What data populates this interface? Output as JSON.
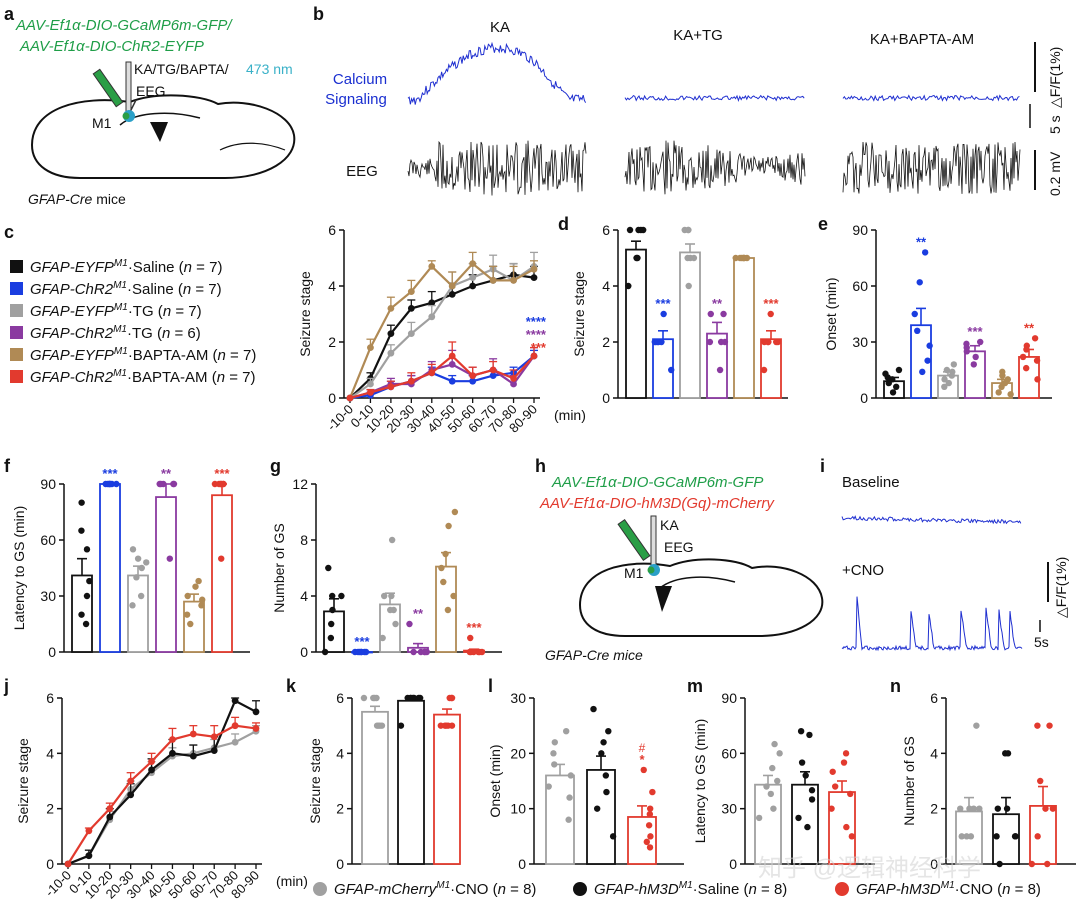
{
  "colors": {
    "black": "#111111",
    "blue": "#1a3de0",
    "gray": "#a0a0a0",
    "purple": "#8a3aa0",
    "tan": "#b08a55",
    "red": "#e23a2e",
    "green": "#1f9e48",
    "cyan": "#3ab1c8",
    "trace_blue": "#1f2fd0",
    "ca_text": "#1a2fd0"
  },
  "labels": {
    "a": "a",
    "b": "b",
    "c": "c",
    "d": "d",
    "e": "e",
    "f": "f",
    "g": "g",
    "h": "h",
    "i": "i",
    "j": "j",
    "k": "k",
    "l": "l",
    "m": "m",
    "n": "n"
  },
  "panel_a": {
    "virus1": "AAV-Ef1α-DIO-GCaMP6m-GFP/",
    "virus2": "AAV-Ef1α-DIO-ChR2-EYFP",
    "drugs": "KA/TG/BAPTA/",
    "light": "473 nm",
    "eeg": "EEG",
    "region": "M1",
    "mice": "GFAP-Cre",
    "mice_suffix": " mice"
  },
  "panel_b": {
    "conditions": [
      "KA",
      "KA+TG",
      "KA+BAPTA-AM"
    ],
    "row1_label_1": "Calcium",
    "row1_label_2": "Signaling",
    "row2_label": "EEG",
    "scale_df": "△F/F(1%)",
    "scale_time": "5 s",
    "scale_mv": "0.2 mV"
  },
  "panel_c_legend": [
    {
      "name": "GFAP-EYFP",
      "sup": "M1",
      "cond": "·Saline (",
      "n": "n",
      "eq": " = 7)",
      "color": "black"
    },
    {
      "name": "GFAP-ChR2",
      "sup": "M1",
      "cond": "·Saline (",
      "n": "n",
      "eq": " = 7)",
      "color": "blue"
    },
    {
      "name": "GFAP-EYFP",
      "sup": "M1",
      "cond": "·TG (",
      "n": "n",
      "eq": " = 7)",
      "color": "gray"
    },
    {
      "name": "GFAP-ChR2",
      "sup": "M1",
      "cond": "·TG (",
      "n": "n",
      "eq": " = 6)",
      "color": "purple"
    },
    {
      "name": "GFAP-EYFP",
      "sup": "M1",
      "cond": "·BAPTA-AM (",
      "n": "n",
      "eq": " = 7)",
      "color": "tan"
    },
    {
      "name": "GFAP-ChR2",
      "sup": "M1",
      "cond": "·BAPTA-AM (",
      "n": "n",
      "eq": " = 7)",
      "color": "red"
    }
  ],
  "panel_h": {
    "virus1": "AAV-Ef1α-DIO-GCaMP6m-GFP",
    "virus2": "AAV-Ef1α-DIO-hM3D(Gq)-mCherry",
    "ka": "KA",
    "eeg": "EEG",
    "region": "M1",
    "mice": "GFAP-Cre mice"
  },
  "panel_i": {
    "baseline": "Baseline",
    "cno": "+CNO",
    "scale_df": "△F/F(1%)",
    "scale_time": "5s"
  },
  "bottom_legend": [
    {
      "name": "GFAP-mCherry",
      "sup": "M1",
      "cond": "·CNO (",
      "n": "n",
      "eq": " = 8)",
      "color": "gray"
    },
    {
      "name": "GFAP-hM3D",
      "sup": "M1",
      "cond": "·Saline (",
      "n": "n",
      "eq": " = 8)",
      "color": "black"
    },
    {
      "name": "GFAP-hM3D",
      "sup": "M1",
      "cond": "·CNO (",
      "n": "n",
      "eq": " = 8)",
      "color": "red"
    }
  ],
  "watermark": "知乎 @逻辑神经科学",
  "chart_data": [
    {
      "id": "c",
      "type": "line",
      "ylabel": "Seizure stage",
      "xlabel": "(min)",
      "categories": [
        "-10-0",
        "0-10",
        "10-20",
        "20-30",
        "30-40",
        "40-50",
        "50-60",
        "60-70",
        "70-80",
        "80-90"
      ],
      "ylim": [
        0,
        6
      ],
      "yticks": [
        0,
        2,
        4,
        6
      ],
      "series": [
        {
          "name": "GFAP-EYFP Saline",
          "color": "black",
          "values": [
            0,
            0.7,
            2.3,
            3.2,
            3.4,
            3.7,
            4.0,
            4.2,
            4.4,
            4.3
          ],
          "err": [
            0,
            0.2,
            0.3,
            0.3,
            0.4,
            0.4,
            0.4,
            0.5,
            0.4,
            0.4
          ]
        },
        {
          "name": "GFAP-ChR2 Saline",
          "color": "blue",
          "values": [
            0,
            0.1,
            0.4,
            0.6,
            0.9,
            0.6,
            0.6,
            0.8,
            0.9,
            1.5
          ],
          "err": [
            0,
            0.1,
            0.2,
            0.2,
            0.2,
            0.2,
            0.2,
            0.2,
            0.2,
            0.2
          ]
        },
        {
          "name": "GFAP-EYFP TG",
          "color": "gray",
          "values": [
            0,
            0.5,
            1.6,
            2.3,
            2.9,
            4.0,
            4.3,
            4.6,
            4.2,
            4.7
          ],
          "err": [
            0,
            0.2,
            0.3,
            0.4,
            0.4,
            0.5,
            0.5,
            0.5,
            0.6,
            0.5
          ]
        },
        {
          "name": "GFAP-ChR2 TG",
          "color": "purple",
          "values": [
            0,
            0.2,
            0.5,
            0.5,
            1.0,
            1.2,
            0.8,
            1.0,
            0.5,
            1.5
          ],
          "err": [
            0,
            0.1,
            0.2,
            0.3,
            0.3,
            0.5,
            0.3,
            0.4,
            0.3,
            0.3
          ]
        },
        {
          "name": "GFAP-EYFP BAPTA-AM",
          "color": "tan",
          "values": [
            0,
            1.8,
            3.2,
            3.8,
            4.7,
            4.0,
            4.8,
            4.2,
            4.2,
            4.6
          ],
          "err": [
            0,
            0.3,
            0.4,
            0.4,
            0.2,
            0.5,
            0.4,
            0.5,
            0.5,
            0.3
          ]
        },
        {
          "name": "GFAP-ChR2 BAPTA-AM",
          "color": "red",
          "values": [
            0,
            0.2,
            0.4,
            0.6,
            0.9,
            1.5,
            0.8,
            1.0,
            0.7,
            1.5
          ],
          "err": [
            0,
            0.1,
            0.2,
            0.3,
            0.3,
            0.5,
            0.3,
            0.3,
            0.3,
            0.3
          ]
        }
      ],
      "stars": [
        {
          "text": "****",
          "color": "blue"
        },
        {
          "text": "****",
          "color": "purple"
        },
        {
          "text": "***",
          "color": "red"
        }
      ]
    },
    {
      "id": "d",
      "type": "bar",
      "ylabel": "Seizure stage",
      "ylim": [
        0,
        6
      ],
      "yticks": [
        0,
        2,
        4,
        6
      ],
      "bars": [
        {
          "color": "black",
          "mean": 5.3,
          "sem": 0.3,
          "points": [
            6,
            6,
            6,
            6,
            5,
            5,
            4
          ],
          "star": ""
        },
        {
          "color": "blue",
          "mean": 2.1,
          "sem": 0.3,
          "points": [
            3,
            2,
            2,
            2,
            2,
            2,
            1
          ],
          "star": "***"
        },
        {
          "color": "gray",
          "mean": 5.2,
          "sem": 0.3,
          "points": [
            6,
            6,
            6,
            5,
            5,
            5,
            4
          ],
          "star": ""
        },
        {
          "color": "purple",
          "mean": 2.3,
          "sem": 0.4,
          "points": [
            3,
            3,
            2,
            2,
            2,
            1
          ],
          "star": "**"
        },
        {
          "color": "tan",
          "mean": 5.0,
          "sem": 0.0,
          "points": [
            5,
            5,
            5,
            5,
            5,
            5,
            5
          ],
          "star": ""
        },
        {
          "color": "red",
          "mean": 2.1,
          "sem": 0.3,
          "points": [
            3,
            2,
            2,
            2,
            2,
            2,
            1
          ],
          "star": "***"
        }
      ]
    },
    {
      "id": "e",
      "type": "bar",
      "ylabel": "Onset (min)",
      "ylim": [
        0,
        90
      ],
      "yticks": [
        0,
        30,
        60,
        90
      ],
      "bars": [
        {
          "color": "black",
          "mean": 9,
          "sem": 2,
          "points": [
            3,
            6,
            8,
            10,
            11,
            13,
            15
          ],
          "star": ""
        },
        {
          "color": "blue",
          "mean": 39,
          "sem": 9,
          "points": [
            14,
            20,
            28,
            36,
            45,
            62,
            78
          ],
          "star": "**"
        },
        {
          "color": "gray",
          "mean": 12,
          "sem": 2,
          "points": [
            6,
            8,
            10,
            12,
            14,
            15,
            18
          ],
          "star": ""
        },
        {
          "color": "purple",
          "mean": 25,
          "sem": 3,
          "points": [
            18,
            22,
            25,
            27,
            29,
            30
          ],
          "star": "***"
        },
        {
          "color": "tan",
          "mean": 8,
          "sem": 2,
          "points": [
            2,
            3,
            6,
            8,
            10,
            12,
            14
          ],
          "star": ""
        },
        {
          "color": "red",
          "mean": 22,
          "sem": 4,
          "points": [
            10,
            16,
            20,
            22,
            26,
            28,
            32
          ],
          "star": "**"
        }
      ]
    },
    {
      "id": "f",
      "type": "bar",
      "ylabel": "Latency to GS (min)",
      "ylim": [
        0,
        90
      ],
      "yticks": [
        0,
        30,
        60,
        90
      ],
      "bars": [
        {
          "color": "black",
          "mean": 41,
          "sem": 9,
          "points": [
            15,
            20,
            30,
            38,
            55,
            65,
            80
          ],
          "star": ""
        },
        {
          "color": "blue",
          "mean": 90,
          "sem": 0,
          "points": [
            90,
            90,
            90,
            90,
            90,
            90,
            90
          ],
          "star": "***"
        },
        {
          "color": "gray",
          "mean": 41,
          "sem": 5,
          "points": [
            25,
            30,
            40,
            45,
            48,
            50,
            55
          ],
          "star": ""
        },
        {
          "color": "purple",
          "mean": 83,
          "sem": 7,
          "points": [
            50,
            90,
            90,
            90,
            90,
            90
          ],
          "star": "**"
        },
        {
          "color": "tan",
          "mean": 27,
          "sem": 4,
          "points": [
            15,
            20,
            25,
            28,
            30,
            35,
            38
          ],
          "star": ""
        },
        {
          "color": "red",
          "mean": 84,
          "sem": 6,
          "points": [
            50,
            90,
            90,
            90,
            90,
            90,
            90
          ],
          "star": "***"
        }
      ]
    },
    {
      "id": "g",
      "type": "bar",
      "ylabel": "Number of GS",
      "ylim": [
        0,
        12
      ],
      "yticks": [
        0,
        4,
        8,
        12
      ],
      "bars": [
        {
          "color": "black",
          "mean": 2.9,
          "sem": 0.9,
          "points": [
            0,
            1,
            2,
            3,
            4,
            4,
            6
          ],
          "star": ""
        },
        {
          "color": "blue",
          "mean": 0,
          "sem": 0,
          "points": [
            0,
            0,
            0,
            0,
            0,
            0,
            0
          ],
          "star": "***"
        },
        {
          "color": "gray",
          "mean": 3.4,
          "sem": 0.8,
          "points": [
            1,
            2,
            3,
            3,
            4,
            4,
            8
          ],
          "star": ""
        },
        {
          "color": "purple",
          "mean": 0.3,
          "sem": 0.3,
          "points": [
            0,
            0,
            0,
            0,
            0,
            2
          ],
          "star": "**"
        },
        {
          "color": "tan",
          "mean": 6.1,
          "sem": 1.0,
          "points": [
            3,
            4,
            5,
            6,
            7,
            9,
            10
          ],
          "star": ""
        },
        {
          "color": "red",
          "mean": 0.1,
          "sem": 0.1,
          "points": [
            0,
            0,
            0,
            0,
            0,
            0,
            1
          ],
          "star": "***"
        }
      ]
    },
    {
      "id": "j",
      "type": "line",
      "ylabel": "Seizure stage",
      "xlabel": "(min)",
      "categories": [
        "-10-0",
        "0-10",
        "10-20",
        "20-30",
        "30-40",
        "40-50",
        "50-60",
        "60-70",
        "70-80",
        "80-90"
      ],
      "ylim": [
        0,
        6
      ],
      "yticks": [
        0,
        2,
        4,
        6
      ],
      "series": [
        {
          "name": "GFAP-mCherry CNO",
          "color": "gray",
          "values": [
            0,
            0.3,
            1.6,
            2.7,
            3.3,
            3.9,
            4.0,
            4.2,
            4.4,
            4.8
          ],
          "err": [
            0,
            0.2,
            0.3,
            0.3,
            0.4,
            0.3,
            0.3,
            0.3,
            0.3,
            0.2
          ]
        },
        {
          "name": "GFAP-hM3D Saline",
          "color": "black",
          "values": [
            0,
            0.3,
            1.7,
            2.5,
            3.4,
            4.0,
            3.9,
            4.1,
            5.9,
            5.5
          ],
          "err": [
            0,
            0.2,
            0.3,
            0.4,
            0.4,
            0.5,
            0.4,
            0.5,
            0.1,
            0.4
          ]
        },
        {
          "name": "GFAP-hM3D CNO",
          "color": "red",
          "values": [
            0,
            1.2,
            2.0,
            3.0,
            3.7,
            4.5,
            4.7,
            4.6,
            5.0,
            4.9
          ],
          "err": [
            0,
            0.1,
            0.2,
            0.3,
            0.3,
            0.4,
            0.3,
            0.4,
            0.3,
            0.2
          ]
        }
      ]
    },
    {
      "id": "k",
      "type": "bar",
      "ylabel": "Seizure stage",
      "ylim": [
        0,
        6
      ],
      "yticks": [
        0,
        2,
        4,
        6
      ],
      "bars": [
        {
          "color": "gray",
          "mean": 5.5,
          "sem": 0.2,
          "points": [
            6,
            6,
            6,
            6,
            5,
            5,
            5,
            5
          ],
          "star": ""
        },
        {
          "color": "black",
          "mean": 5.9,
          "sem": 0.1,
          "points": [
            6,
            6,
            6,
            6,
            6,
            6,
            6,
            5
          ],
          "star": ""
        },
        {
          "color": "red",
          "mean": 5.4,
          "sem": 0.2,
          "points": [
            6,
            6,
            6,
            5,
            5,
            5,
            5,
            5
          ],
          "star": ""
        }
      ]
    },
    {
      "id": "l",
      "type": "bar",
      "ylabel": "Onset (min)",
      "ylim": [
        0,
        30
      ],
      "yticks": [
        0,
        10,
        20,
        30
      ],
      "bars": [
        {
          "color": "gray",
          "mean": 16,
          "sem": 2,
          "points": [
            8,
            12,
            14,
            16,
            18,
            20,
            22,
            24
          ],
          "star": ""
        },
        {
          "color": "black",
          "mean": 17,
          "sem": 2.5,
          "points": [
            5,
            10,
            13,
            16,
            20,
            22,
            24,
            28
          ],
          "star": ""
        },
        {
          "color": "red",
          "mean": 8.5,
          "sem": 2,
          "points": [
            3,
            4,
            5,
            7,
            9,
            10,
            13,
            17
          ],
          "star": "*",
          "star2": "#"
        }
      ]
    },
    {
      "id": "m",
      "type": "bar",
      "ylabel": "Latency to GS (min)",
      "ylim": [
        0,
        90
      ],
      "yticks": [
        0,
        30,
        60,
        90
      ],
      "bars": [
        {
          "color": "gray",
          "mean": 43,
          "sem": 5,
          "points": [
            25,
            30,
            38,
            42,
            45,
            52,
            60,
            65
          ],
          "star": ""
        },
        {
          "color": "black",
          "mean": 43,
          "sem": 7,
          "points": [
            20,
            25,
            35,
            40,
            48,
            55,
            70,
            72
          ],
          "star": ""
        },
        {
          "color": "red",
          "mean": 39,
          "sem": 6,
          "points": [
            15,
            20,
            30,
            38,
            42,
            50,
            55,
            60
          ],
          "star": ""
        }
      ]
    },
    {
      "id": "n",
      "type": "bar",
      "ylabel": "Number of GS",
      "ylim": [
        0,
        6
      ],
      "yticks": [
        0,
        2,
        4,
        6
      ],
      "bars": [
        {
          "color": "gray",
          "mean": 1.9,
          "sem": 0.5,
          "points": [
            1,
            1,
            1,
            2,
            2,
            2,
            2,
            5
          ],
          "star": ""
        },
        {
          "color": "black",
          "mean": 1.8,
          "sem": 0.6,
          "points": [
            0,
            1,
            1,
            1,
            2,
            2,
            4,
            4
          ],
          "star": ""
        },
        {
          "color": "red",
          "mean": 2.1,
          "sem": 0.7,
          "points": [
            0,
            0,
            1,
            2,
            2,
            3,
            5,
            5
          ],
          "star": ""
        }
      ]
    }
  ]
}
